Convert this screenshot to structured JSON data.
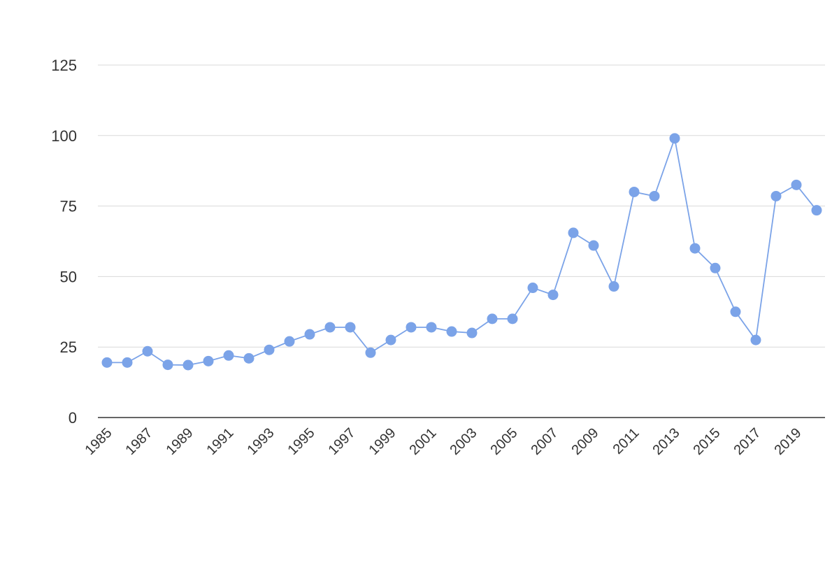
{
  "chart_data": {
    "type": "line",
    "x": [
      1985,
      1986,
      1987,
      1988,
      1989,
      1990,
      1991,
      1992,
      1993,
      1994,
      1995,
      1996,
      1997,
      1998,
      1999,
      2000,
      2001,
      2002,
      2003,
      2004,
      2005,
      2006,
      2007,
      2008,
      2009,
      2010,
      2011,
      2012,
      2013,
      2014,
      2015,
      2016,
      2017,
      2018,
      2019,
      2020
    ],
    "series": [
      {
        "values": [
          19.5,
          19.5,
          23.5,
          18.7,
          18.6,
          20,
          22,
          21,
          24,
          27,
          29.5,
          32,
          32,
          23,
          27.5,
          32,
          32,
          30.5,
          30,
          35,
          35,
          46,
          43.5,
          65.5,
          61,
          46.5,
          80,
          78.5,
          99,
          60,
          53,
          37.5,
          27.5,
          78.5,
          82.5,
          73.5
        ]
      }
    ],
    "ylim": [
      0,
      125
    ],
    "yticks": [
      "0",
      "25",
      "50",
      "75",
      "100",
      "125"
    ],
    "xtick_labels": [
      "1985",
      "1987",
      "1989",
      "1991",
      "1993",
      "1995",
      "1997",
      "1999",
      "2001",
      "2003",
      "2005",
      "2007",
      "2009",
      "2011",
      "2013",
      "2015",
      "2017",
      "2019"
    ],
    "grid": true,
    "colors": {
      "line": "#7ba3e8",
      "marker": "#7ba3e8",
      "grid": "#d9d9d9",
      "axis": "#333333",
      "text": "#333333"
    }
  }
}
